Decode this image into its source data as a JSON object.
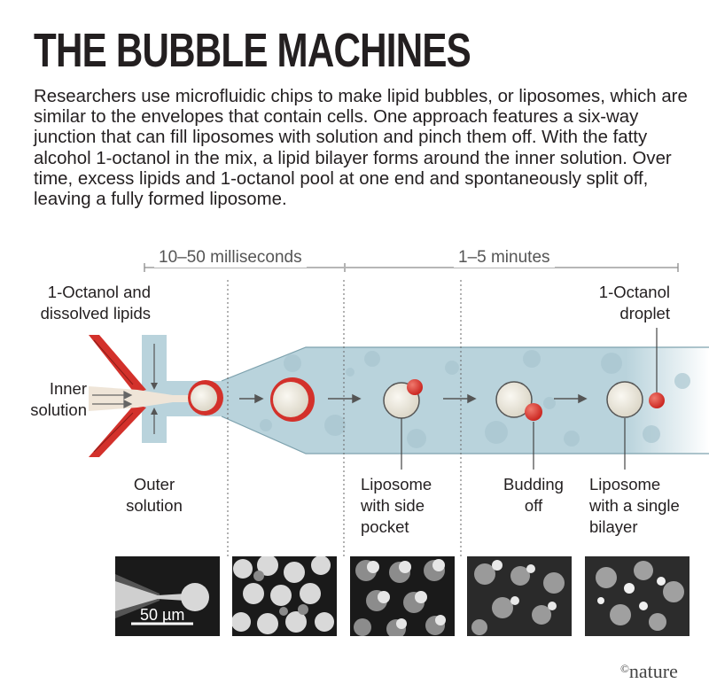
{
  "title": "THE BUBBLE MACHINES",
  "intro": "Researchers use microfluidic chips to make lipid bubbles, or liposomes, which are similar to the envelopes that contain cells. One approach features a six-way junction that can fill liposomes with solution and pinch them off. With the fatty alcohol 1-octanol in the mix, a lipid bilayer forms around the inner solution. Over time, excess lipids and 1-octanol pool at one end and spontaneously split off, leaving a fully formed liposome.",
  "phases": {
    "fast": "10–50 milliseconds",
    "slow": "1–5 minutes"
  },
  "labels": {
    "octanol_lipids": [
      "1-Octanol and",
      "dissolved lipids"
    ],
    "inner_solution": [
      "Inner",
      "solution"
    ],
    "outer_solution": [
      "Outer",
      "solution"
    ],
    "side_pocket": [
      "Liposome",
      "with side",
      "pocket"
    ],
    "budding": [
      "Budding",
      "off"
    ],
    "single_bilayer": [
      "Liposome",
      "with a single",
      "bilayer"
    ],
    "octanol_droplet": [
      "1-Octanol",
      "droplet"
    ]
  },
  "scale_bar": "50 µm",
  "credit": {
    "symbol": "©",
    "name": "nature"
  },
  "colors": {
    "channel": "#b9d3dc",
    "lipid_red": "#d3312b",
    "liposome": "#efece3",
    "micrograph": "#1a1a1a"
  }
}
